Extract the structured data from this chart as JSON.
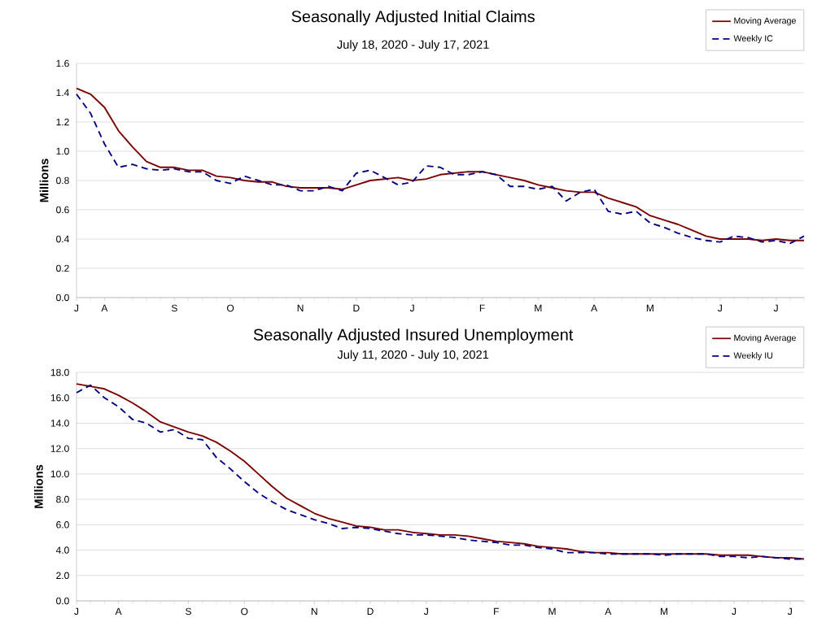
{
  "chart_data": [
    {
      "type": "line",
      "title": "Seasonally Adjusted Initial Claims",
      "subtitle": "July 18, 2020 - July 17, 2021",
      "ylabel": "Millions",
      "categories": [
        "J",
        null,
        "A",
        null,
        null,
        null,
        null,
        "S",
        null,
        null,
        null,
        "O",
        null,
        null,
        null,
        null,
        "N",
        null,
        null,
        null,
        "D",
        null,
        null,
        null,
        "J",
        null,
        null,
        null,
        null,
        "F",
        null,
        null,
        null,
        "M",
        null,
        null,
        null,
        "A",
        null,
        null,
        null,
        "M",
        null,
        null,
        null,
        null,
        "J",
        null,
        null,
        null,
        "J",
        null,
        null
      ],
      "series": [
        {
          "name": "Moving Average",
          "color": "#7b0000",
          "line_style": "solid",
          "values": [
            1.43,
            1.39,
            1.3,
            1.14,
            1.03,
            0.93,
            0.89,
            0.89,
            0.87,
            0.87,
            0.83,
            0.82,
            0.8,
            0.79,
            0.79,
            0.76,
            0.75,
            0.75,
            0.75,
            0.74,
            0.77,
            0.8,
            0.81,
            0.82,
            0.8,
            0.81,
            0.84,
            0.85,
            0.86,
            0.86,
            0.84,
            0.82,
            0.8,
            0.77,
            0.75,
            0.73,
            0.72,
            0.72,
            0.68,
            0.65,
            0.62,
            0.56,
            0.53,
            0.5,
            0.46,
            0.42,
            0.4,
            0.4,
            0.4,
            0.39,
            0.4,
            0.39,
            0.39
          ]
        },
        {
          "name": "Weekly IC",
          "color": "#000080",
          "line_style": "dashed",
          "values": [
            1.39,
            1.26,
            1.05,
            0.89,
            0.91,
            0.88,
            0.87,
            0.88,
            0.86,
            0.86,
            0.8,
            0.78,
            0.83,
            0.8,
            0.77,
            0.77,
            0.73,
            0.73,
            0.76,
            0.73,
            0.85,
            0.87,
            0.82,
            0.77,
            0.79,
            0.9,
            0.89,
            0.84,
            0.84,
            0.86,
            0.84,
            0.76,
            0.76,
            0.74,
            0.76,
            0.66,
            0.72,
            0.74,
            0.59,
            0.57,
            0.59,
            0.51,
            0.48,
            0.44,
            0.41,
            0.39,
            0.38,
            0.42,
            0.41,
            0.38,
            0.39,
            0.37,
            0.42
          ]
        }
      ],
      "ylim": [
        0,
        1.6
      ],
      "yticks": [
        {
          "value": 0,
          "label": "0.0"
        },
        {
          "value": 0.2,
          "label": "0.2"
        },
        {
          "value": 0.4,
          "label": "0.4"
        },
        {
          "value": 0.6,
          "label": "0.6"
        },
        {
          "value": 0.8,
          "label": "0.8"
        },
        {
          "value": 1.0,
          "label": "1.0"
        },
        {
          "value": 1.2,
          "label": "1.2"
        },
        {
          "value": 1.4,
          "label": "1.4"
        },
        {
          "value": 1.6,
          "label": "1.6"
        }
      ],
      "grid": "y",
      "legend": "top right",
      "marker": "none"
    },
    {
      "type": "line",
      "title": "Seasonally Adjusted Insured Unemployment",
      "subtitle": "July 11, 2020 - July 10, 2021",
      "ylabel": "Millions",
      "categories": [
        "J",
        null,
        null,
        "A",
        null,
        null,
        null,
        null,
        "S",
        null,
        null,
        null,
        "O",
        null,
        null,
        null,
        null,
        "N",
        null,
        null,
        null,
        "D",
        null,
        null,
        null,
        "J",
        null,
        null,
        null,
        null,
        "F",
        null,
        null,
        null,
        "M",
        null,
        null,
        null,
        "A",
        null,
        null,
        null,
        "M",
        null,
        null,
        null,
        null,
        "J",
        null,
        null,
        null,
        "J",
        null
      ],
      "series": [
        {
          "name": "Moving Average",
          "color": "#7b0000",
          "line_style": "solid",
          "values": [
            17.1,
            16.9,
            16.7,
            16.2,
            15.6,
            14.9,
            14.1,
            13.7,
            13.3,
            13.0,
            12.5,
            11.8,
            11.0,
            10.0,
            9.0,
            8.1,
            7.5,
            6.9,
            6.5,
            6.2,
            5.9,
            5.8,
            5.6,
            5.6,
            5.4,
            5.3,
            5.2,
            5.2,
            5.1,
            4.9,
            4.7,
            4.6,
            4.5,
            4.3,
            4.2,
            4.1,
            3.9,
            3.8,
            3.8,
            3.7,
            3.7,
            3.7,
            3.7,
            3.7,
            3.7,
            3.7,
            3.6,
            3.6,
            3.6,
            3.5,
            3.4,
            3.4,
            3.3
          ]
        },
        {
          "name": "Weekly IU",
          "color": "#000080",
          "line_style": "dashed",
          "values": [
            16.4,
            17.0,
            16.0,
            15.3,
            14.3,
            14.0,
            13.3,
            13.5,
            12.8,
            12.7,
            11.3,
            10.4,
            9.4,
            8.5,
            7.8,
            7.2,
            6.8,
            6.4,
            6.1,
            5.7,
            5.8,
            5.7,
            5.5,
            5.3,
            5.2,
            5.2,
            5.1,
            5.0,
            4.8,
            4.7,
            4.6,
            4.4,
            4.4,
            4.2,
            4.1,
            3.8,
            3.8,
            3.8,
            3.7,
            3.7,
            3.7,
            3.7,
            3.6,
            3.7,
            3.7,
            3.7,
            3.5,
            3.5,
            3.4,
            3.5,
            3.4,
            3.3,
            3.3
          ]
        }
      ],
      "ylim": [
        0,
        18
      ],
      "yticks": [
        {
          "value": 0,
          "label": "0.0"
        },
        {
          "value": 2,
          "label": "2.0"
        },
        {
          "value": 4,
          "label": "4.0"
        },
        {
          "value": 6,
          "label": "6.0"
        },
        {
          "value": 8,
          "label": "8.0"
        },
        {
          "value": 10,
          "label": "10.0"
        },
        {
          "value": 12,
          "label": "12.0"
        },
        {
          "value": 14,
          "label": "14.0"
        },
        {
          "value": 16,
          "label": "16.0"
        },
        {
          "value": 18,
          "label": "18.0"
        }
      ],
      "grid": "y",
      "legend": "top right",
      "marker": "none"
    }
  ]
}
